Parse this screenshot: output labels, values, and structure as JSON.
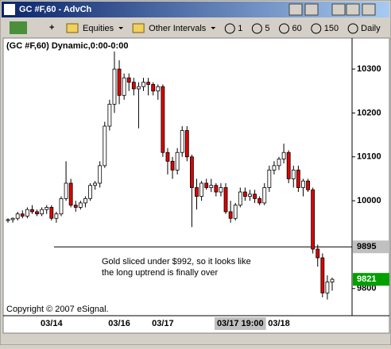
{
  "window": {
    "title": "GC #F,60 - AdvCh"
  },
  "toolbar": {
    "items": [
      "Equities",
      "Other Intervals",
      "1",
      "5",
      "60",
      "150",
      "Daily"
    ]
  },
  "chart_data": {
    "type": "candlestick",
    "title": "(GC #F,60) Dynamic,0:00-0:00",
    "annotation": [
      "Gold sliced under $992, so it looks like",
      "the long uptrend is finally over"
    ],
    "copyright": "Copyright © 2007 eSignal.",
    "categories": [
      null,
      null,
      null,
      null,
      null,
      null,
      null,
      null,
      null,
      "03/14",
      null,
      null,
      null,
      null,
      null,
      null,
      null,
      null,
      null,
      null,
      null,
      null,
      null,
      "03/16",
      null,
      null,
      null,
      null,
      null,
      null,
      null,
      null,
      "03/17",
      null,
      null,
      null,
      null,
      null,
      null,
      null,
      null,
      null,
      null,
      null,
      null,
      null,
      null,
      null,
      "03/17 19:00",
      null,
      null,
      null,
      null,
      null,
      null,
      null,
      "03/18",
      null,
      null,
      null,
      null,
      null,
      null,
      null,
      null,
      null,
      null,
      null
    ],
    "open": [
      9955,
      9957,
      9960,
      9970,
      9965,
      9980,
      9975,
      9970,
      9980,
      9985,
      9960,
      9970,
      10005,
      10040,
      9990,
      9985,
      9995,
      10005,
      10035,
      10040,
      10080,
      10170,
      10220,
      10300,
      10240,
      10280,
      10270,
      10255,
      10260,
      10270,
      10265,
      10250,
      10260,
      10110,
      10090,
      10070,
      10110,
      10160,
      10100,
      10030,
      10010,
      10040,
      10030,
      10035,
      10020,
      10030,
      9975,
      9960,
      9990,
      10020,
      10010,
      10015,
      10005,
      9995,
      10030,
      10070,
      10080,
      10095,
      10110,
      10050,
      10070,
      10030,
      10045,
      10025,
      9890,
      9870,
      9790,
      9815
    ],
    "high": [
      9960,
      9962,
      9975,
      9978,
      9985,
      9990,
      9980,
      9985,
      9990,
      9990,
      9975,
      10010,
      10090,
      10050,
      10000,
      10000,
      10010,
      10040,
      10045,
      10090,
      10180,
      10230,
      10340,
      10320,
      10290,
      10290,
      10280,
      10270,
      10280,
      10280,
      10270,
      10265,
      10265,
      10120,
      10100,
      10120,
      10170,
      10170,
      10105,
      10050,
      10045,
      10050,
      10050,
      10040,
      10040,
      10040,
      10000,
      9995,
      10030,
      10030,
      10025,
      10025,
      10010,
      10040,
      10080,
      10090,
      10100,
      10130,
      10115,
      10080,
      10080,
      10050,
      10050,
      10030,
      9900,
      9880,
      9830,
      9825
    ],
    "low": [
      9950,
      9950,
      9955,
      9960,
      9960,
      9970,
      9965,
      9965,
      9970,
      9955,
      9950,
      9965,
      10000,
      9985,
      9975,
      9980,
      9985,
      10000,
      10025,
      10030,
      10075,
      10160,
      10200,
      10220,
      10230,
      10250,
      10240,
      10165,
      10250,
      10240,
      10240,
      10230,
      10100,
      10060,
      10050,
      10060,
      10100,
      10090,
      9940,
      9980,
      10000,
      10025,
      10020,
      10010,
      10010,
      9970,
      9950,
      9955,
      9985,
      10000,
      10000,
      9995,
      9990,
      9990,
      10020,
      10060,
      10070,
      10085,
      10040,
      10030,
      10020,
      10010,
      10020,
      9880,
      9850,
      9780,
      9775,
      9795
    ],
    "close": [
      9957,
      9960,
      9970,
      9965,
      9980,
      9975,
      9970,
      9980,
      9985,
      9960,
      9970,
      10005,
      10040,
      9990,
      9985,
      9995,
      10005,
      10035,
      10040,
      10080,
      10170,
      10220,
      10300,
      10240,
      10280,
      10270,
      10255,
      10260,
      10270,
      10265,
      10250,
      10260,
      10110,
      10090,
      10070,
      10110,
      10160,
      10100,
      10030,
      10010,
      10040,
      10030,
      10035,
      10020,
      10030,
      9975,
      9960,
      9990,
      10020,
      10010,
      10015,
      10005,
      9995,
      10030,
      10070,
      10080,
      10095,
      10110,
      10050,
      10070,
      10030,
      10045,
      10025,
      9890,
      9870,
      9790,
      9815,
      9821
    ],
    "up_color": "#ffffff",
    "down_color": "#e00000",
    "ylim": [
      9740,
      10367
    ],
    "yticks": [
      10300,
      10200,
      10100,
      10000,
      9800
    ],
    "hline": 9895
  }
}
